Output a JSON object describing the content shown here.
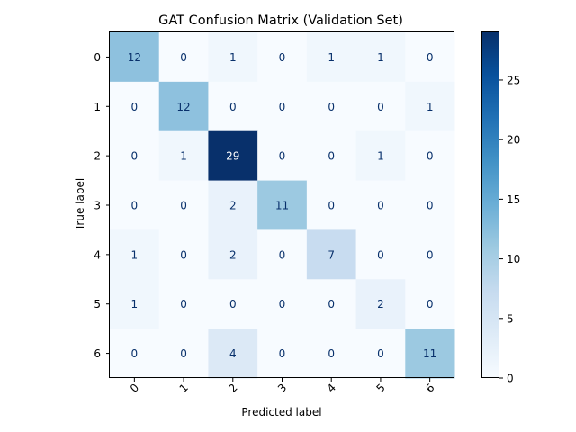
{
  "chart_data": {
    "type": "heatmap",
    "title": "GAT Confusion Matrix (Validation Set)",
    "xlabel": "Predicted label",
    "ylabel": "True label",
    "x_ticks": [
      "0",
      "1",
      "2",
      "3",
      "4",
      "5",
      "6"
    ],
    "y_ticks": [
      "0",
      "1",
      "2",
      "3",
      "4",
      "5",
      "6"
    ],
    "matrix": [
      [
        12,
        0,
        1,
        0,
        1,
        1,
        0
      ],
      [
        0,
        12,
        0,
        0,
        0,
        0,
        1
      ],
      [
        0,
        1,
        29,
        0,
        0,
        1,
        0
      ],
      [
        0,
        0,
        2,
        11,
        0,
        0,
        0
      ],
      [
        1,
        0,
        2,
        0,
        7,
        0,
        0
      ],
      [
        1,
        0,
        0,
        0,
        0,
        2,
        0
      ],
      [
        0,
        0,
        4,
        0,
        0,
        0,
        11
      ]
    ],
    "colorbar": {
      "min": 0,
      "max": 29,
      "ticks": [
        "0",
        "5",
        "10",
        "15",
        "20",
        "25"
      ]
    },
    "colormap": "Blues",
    "grid": false
  }
}
